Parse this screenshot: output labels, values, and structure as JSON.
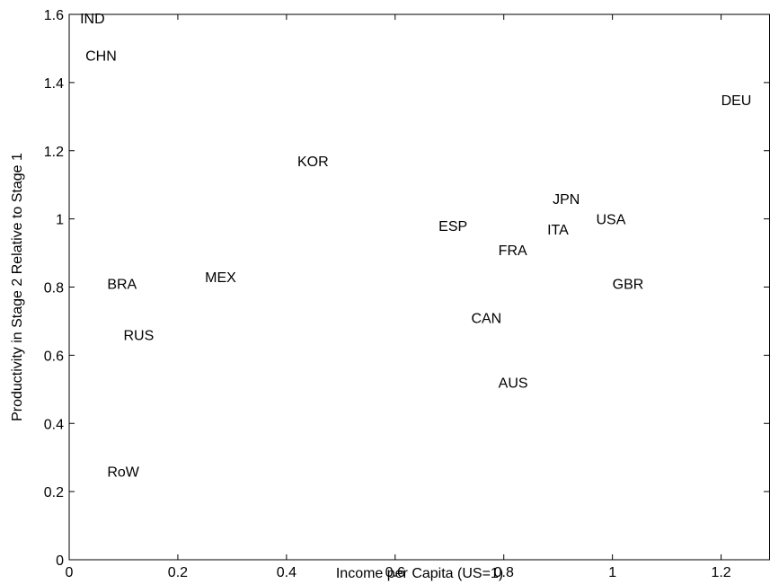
{
  "chart_data": {
    "type": "scatter",
    "title": "",
    "xlabel": "Income per Capita (US=1)",
    "ylabel": "Productivity in Stage 2 Relative to Stage 1",
    "xlim": [
      0,
      1.29
    ],
    "ylim": [
      0,
      1.6
    ],
    "xticks": [
      0,
      0.2,
      0.4,
      0.6,
      0.8,
      1.0,
      1.2
    ],
    "xtick_labels": [
      "0",
      "0.2",
      "0.4",
      "0.6",
      "0.8",
      "1",
      "1.2"
    ],
    "yticks": [
      0,
      0.2,
      0.4,
      0.6,
      0.8,
      1.0,
      1.2,
      1.4,
      1.6
    ],
    "ytick_labels": [
      "0",
      "0.2",
      "0.4",
      "0.6",
      "0.8",
      "1",
      "1.2",
      "1.4",
      "1.6"
    ],
    "grid": false,
    "marker": "text-label",
    "points": [
      {
        "label": "IND",
        "x": 0.02,
        "y": 1.59
      },
      {
        "label": "CHN",
        "x": 0.03,
        "y": 1.48
      },
      {
        "label": "DEU",
        "x": 1.2,
        "y": 1.35
      },
      {
        "label": "KOR",
        "x": 0.42,
        "y": 1.17
      },
      {
        "label": "JPN",
        "x": 0.89,
        "y": 1.06
      },
      {
        "label": "USA",
        "x": 0.97,
        "y": 1.0
      },
      {
        "label": "ESP",
        "x": 0.68,
        "y": 0.98
      },
      {
        "label": "ITA",
        "x": 0.88,
        "y": 0.97
      },
      {
        "label": "FRA",
        "x": 0.79,
        "y": 0.91
      },
      {
        "label": "MEX",
        "x": 0.25,
        "y": 0.83
      },
      {
        "label": "BRA",
        "x": 0.07,
        "y": 0.81
      },
      {
        "label": "GBR",
        "x": 1.0,
        "y": 0.81
      },
      {
        "label": "CAN",
        "x": 0.74,
        "y": 0.71
      },
      {
        "label": "RUS",
        "x": 0.1,
        "y": 0.66
      },
      {
        "label": "AUS",
        "x": 0.79,
        "y": 0.52
      },
      {
        "label": "RoW",
        "x": 0.07,
        "y": 0.26
      }
    ]
  }
}
